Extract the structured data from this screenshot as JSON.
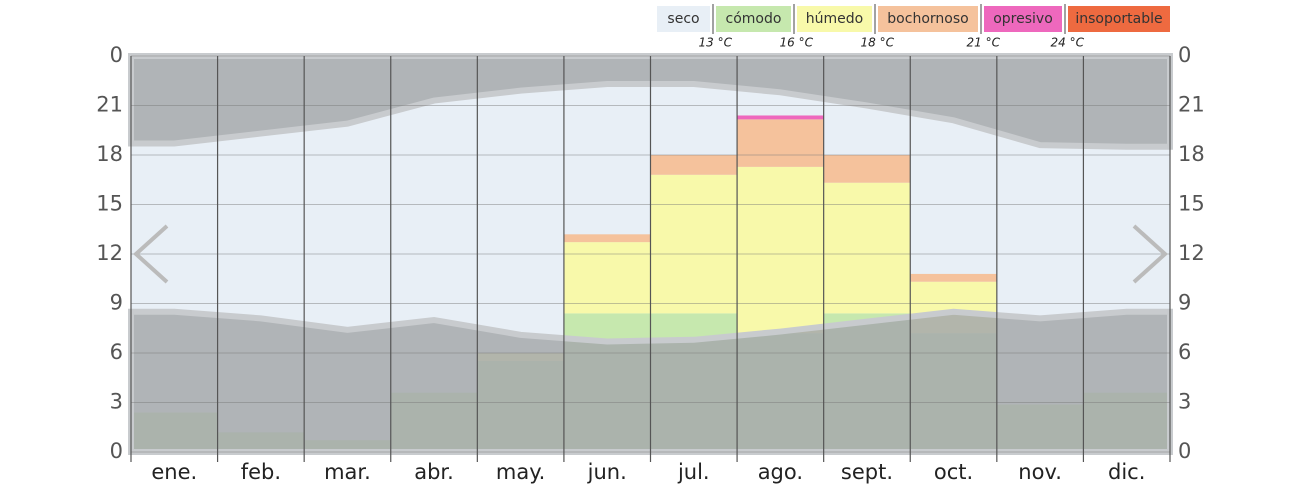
{
  "chart_data": {
    "type": "heatmap",
    "categories": [
      "ene.",
      "feb.",
      "mar.",
      "abr.",
      "may.",
      "jun.",
      "jul.",
      "ago.",
      "sept.",
      "oct.",
      "nov.",
      "dic."
    ],
    "series": [
      {
        "name": "seco",
        "color": "#e8eff6",
        "values": [
          90,
          95,
          97,
          85,
          75,
          45,
          25,
          15,
          25,
          55,
          88,
          85
        ]
      },
      {
        "name": "cómodo",
        "color": "#c6e8ae",
        "values": [
          10,
          5,
          3,
          15,
          23,
          35,
          35,
          30,
          35,
          30,
          12,
          15
        ]
      },
      {
        "name": "húmedo",
        "color": "#f8f9aa",
        "values": [
          0,
          0,
          0,
          0,
          2,
          18,
          35,
          42,
          33,
          13,
          0,
          0
        ]
      },
      {
        "name": "bochornoso",
        "color": "#f5c29c",
        "values": [
          0,
          0,
          0,
          0,
          0,
          2,
          5,
          12,
          7,
          2,
          0,
          0
        ]
      },
      {
        "name": "opresivo",
        "color": "#ee68bd",
        "values": [
          0,
          0,
          0,
          0,
          0,
          0,
          0,
          1,
          0,
          0,
          0,
          0
        ]
      },
      {
        "name": "insoportable",
        "color": "#ee6a40",
        "values": [
          0,
          0,
          0,
          0,
          0,
          0,
          0,
          0,
          0,
          0,
          0,
          0
        ]
      }
    ],
    "thresholds": [
      "13 °C",
      "16 °C",
      "18 °C",
      "21 °C",
      "24 °C"
    ],
    "sunrise": [
      8.5,
      8.1,
      7.4,
      8.0,
      7.1,
      6.7,
      6.8,
      7.3,
      7.9,
      8.5,
      8.1,
      8.5
    ],
    "sunset": [
      18.7,
      19.3,
      19.9,
      21.3,
      21.9,
      22.3,
      22.3,
      21.8,
      21.0,
      20.1,
      18.6,
      18.5
    ],
    "night_color": "#a6a9ac",
    "ylim": [
      0,
      24
    ],
    "yticks": [
      0,
      3,
      6,
      9,
      12,
      15,
      18,
      21,
      {
        "value": 24,
        "label": "0"
      }
    ],
    "grid": true
  }
}
